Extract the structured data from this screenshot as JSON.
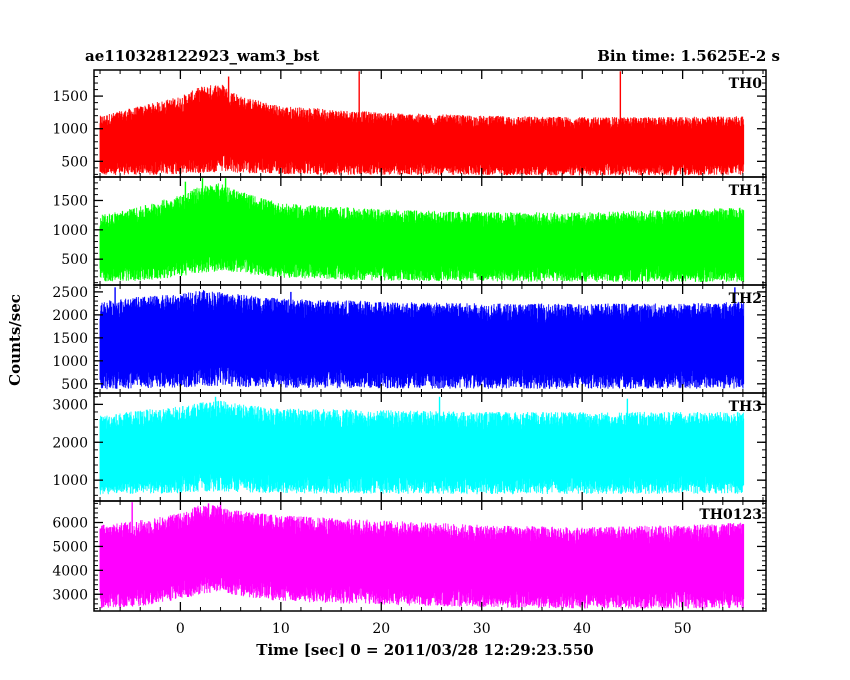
{
  "header": {
    "left_title": "ae110328122923_wam3_bst",
    "right_title": "Bin time: 1.5625E-2 s"
  },
  "chart_data": {
    "type": "line",
    "xlabel": "Time [sec] 0 = 2011/03/28 12:29:23.550",
    "ylabel": "Counts/sec",
    "xlim": [
      -8.6,
      58.3
    ],
    "x_tick_labels": [
      "0",
      "10",
      "20",
      "30",
      "40",
      "50"
    ],
    "x_data_range": [
      -8.0,
      56.0
    ],
    "bin_time_s": 0.015625,
    "grid": false,
    "panels": [
      {
        "name": "TH0",
        "color": "#ff0000",
        "ylim": [
          260,
          1900
        ],
        "ytick_labels": [
          "500",
          "1000",
          "1500"
        ],
        "envelope_time": [
          -8,
          -4,
          0,
          2,
          4,
          6,
          10,
          20,
          30,
          40,
          50,
          56
        ],
        "envelope_low": [
          290,
          290,
          300,
          320,
          330,
          320,
          300,
          290,
          290,
          280,
          285,
          290
        ],
        "envelope_high": [
          1200,
          1350,
          1500,
          1650,
          1700,
          1500,
          1350,
          1250,
          1200,
          1180,
          1180,
          1200
        ],
        "spikes": [
          [
            17.8,
            1880
          ],
          [
            43.8,
            1880
          ],
          [
            4.8,
            1800
          ]
        ]
      },
      {
        "name": "TH1",
        "color": "#00ff00",
        "ylim": [
          60,
          1900
        ],
        "ytick_labels": [
          "500",
          "1000",
          "1500"
        ],
        "envelope_time": [
          -8,
          -4,
          0,
          2,
          4,
          6,
          10,
          20,
          30,
          40,
          50,
          56
        ],
        "envelope_low": [
          120,
          130,
          200,
          260,
          300,
          260,
          180,
          130,
          120,
          110,
          110,
          110
        ],
        "envelope_high": [
          1250,
          1400,
          1600,
          1750,
          1800,
          1650,
          1450,
          1350,
          1300,
          1300,
          1350,
          1380
        ],
        "spikes": [
          [
            2.2,
            1880
          ],
          [
            4.5,
            1880
          ],
          [
            0.5,
            1820
          ]
        ]
      },
      {
        "name": "TH2",
        "color": "#0000ff",
        "ylim": [
          300,
          2650
        ],
        "ytick_labels": [
          "500",
          "1000",
          "1500",
          "2000",
          "2500"
        ],
        "envelope_time": [
          -8,
          -4,
          0,
          2,
          4,
          6,
          10,
          20,
          30,
          40,
          50,
          56
        ],
        "envelope_low": [
          380,
          400,
          420,
          440,
          450,
          430,
          410,
          400,
          390,
          390,
          390,
          390
        ],
        "envelope_high": [
          2300,
          2400,
          2450,
          2550,
          2500,
          2450,
          2350,
          2300,
          2250,
          2250,
          2250,
          2300
        ],
        "spikes": [
          [
            -6.5,
            2600
          ],
          [
            55.2,
            2600
          ],
          [
            11.0,
            2500
          ]
        ]
      },
      {
        "name": "TH3",
        "color": "#00ffff",
        "ylim": [
          450,
          3300
        ],
        "ytick_labels": [
          "1000",
          "2000",
          "3000"
        ],
        "envelope_time": [
          -8,
          -4,
          0,
          2,
          4,
          6,
          10,
          20,
          30,
          40,
          50,
          56
        ],
        "envelope_low": [
          620,
          640,
          650,
          700,
          700,
          680,
          650,
          640,
          630,
          630,
          640,
          640
        ],
        "envelope_high": [
          2700,
          2850,
          2950,
          3050,
          3100,
          3000,
          2900,
          2850,
          2800,
          2800,
          2800,
          2800
        ],
        "spikes": [
          [
            3.5,
            3200
          ],
          [
            25.8,
            3200
          ],
          [
            44.5,
            3150
          ]
        ]
      },
      {
        "name": "TH0123",
        "color": "#ff00ff",
        "ylim": [
          2300,
          6900
        ],
        "ytick_labels": [
          "3000",
          "4000",
          "5000",
          "6000"
        ],
        "envelope_time": [
          -8,
          -4,
          0,
          2,
          4,
          6,
          10,
          20,
          30,
          40,
          50,
          56
        ],
        "envelope_low": [
          2400,
          2500,
          2800,
          3000,
          3100,
          2900,
          2700,
          2550,
          2450,
          2400,
          2400,
          2400
        ],
        "envelope_high": [
          5900,
          6100,
          6400,
          6800,
          6700,
          6500,
          6300,
          6100,
          5900,
          5800,
          5900,
          6000
        ],
        "spikes": [
          [
            -4.8,
            6850
          ],
          [
            4.0,
            6850
          ],
          [
            2.8,
            6800
          ]
        ]
      }
    ]
  }
}
